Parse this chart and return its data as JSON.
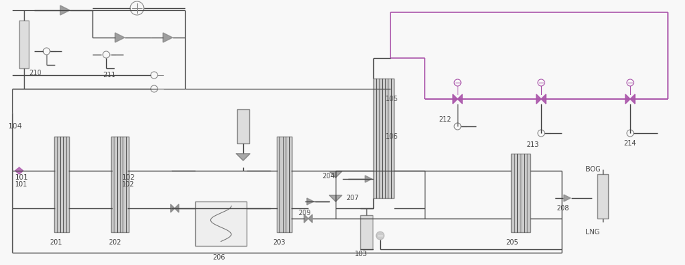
{
  "bg_color": "#f8f8f8",
  "line_color": "#444444",
  "gray": "#888888",
  "dark_gray": "#555555",
  "purple": "#aa55aa",
  "light_gray": "#cccccc",
  "figsize": [
    10.0,
    3.88
  ],
  "dpi": 100
}
